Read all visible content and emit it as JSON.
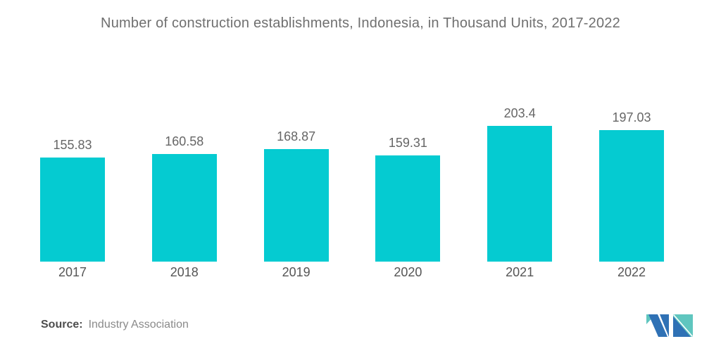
{
  "header": {
    "title": "Number of construction establishments, Indonesia, in Thousand Units, 2017-2022"
  },
  "source": {
    "label": "Source:",
    "value": "Industry Association"
  },
  "logo": {
    "name": "mordor-intelligence-logo-mark"
  },
  "colors": {
    "bar": "#05CBD1",
    "title_text": "#6f6f6f",
    "value_text": "#666666",
    "axis_text": "#555555",
    "logo_blue": "#2F71B5",
    "logo_teal": "#5FC6BF"
  },
  "chart_data": {
    "type": "bar",
    "title": "Number of construction establishments, Indonesia, in Thousand Units, 2017-2022",
    "categories": [
      "2017",
      "2018",
      "2019",
      "2020",
      "2021",
      "2022"
    ],
    "values": [
      155.83,
      160.58,
      168.87,
      159.31,
      203.4,
      197.03
    ],
    "value_labels": [
      "155.83",
      "160.58",
      "168.87",
      "159.31",
      "203.4",
      "197.03"
    ],
    "xlabel": "",
    "ylabel": "",
    "ylim": [
      0,
      220
    ],
    "grid": false,
    "legend": false,
    "bar_color": "#05CBD1",
    "value_label_position": "above-bar",
    "baseline": 0
  }
}
